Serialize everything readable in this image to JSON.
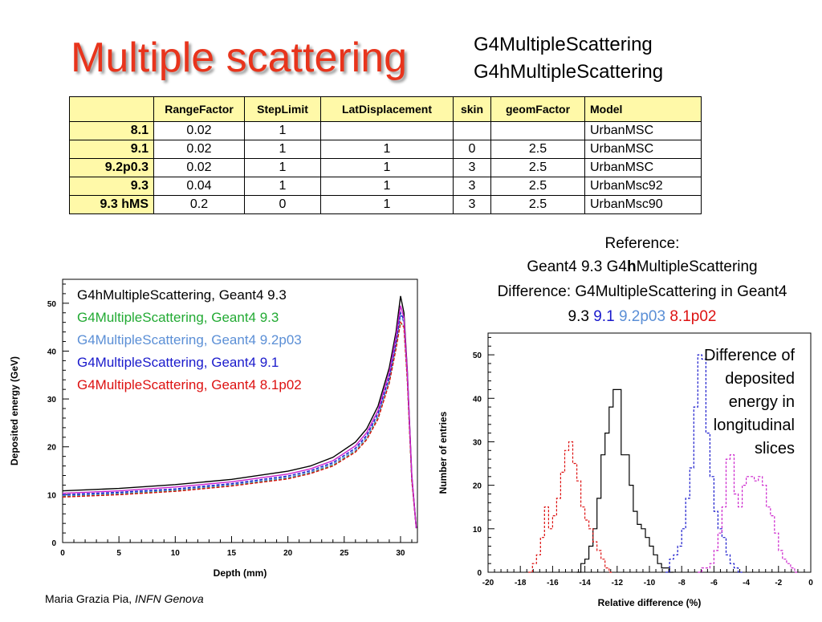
{
  "title": "Multiple scattering",
  "classes": [
    "G4MultipleScattering",
    "G4hMultipleScattering"
  ],
  "table": {
    "headers": [
      "",
      "RangeFactor",
      "StepLimit",
      "LatDisplacement",
      "skin",
      "geomFactor",
      "Model"
    ],
    "rows": [
      [
        "8.1",
        "0.02",
        "1",
        "",
        "",
        "",
        "UrbanMSC"
      ],
      [
        "9.1",
        "0.02",
        "1",
        "1",
        "0",
        "2.5",
        "UrbanMSC"
      ],
      [
        "9.2p0.3",
        "0.02",
        "1",
        "1",
        "3",
        "2.5",
        "UrbanMSC"
      ],
      [
        "9.3",
        "0.04",
        "1",
        "1",
        "3",
        "2.5",
        "UrbanMsc92"
      ],
      [
        "9.3 hMS",
        "0.2",
        "0",
        "1",
        "3",
        "2.5",
        "UrbanMsc90"
      ]
    ]
  },
  "reference": {
    "line1": "Reference:",
    "line2_pre": "Geant4 9.3 G4",
    "line2_bold": "h",
    "line2_post": "MultipleScattering",
    "line3": "Difference: G4MultipleScattering in Geant4",
    "line4_black": "9.3",
    "line4_blue": "9.1",
    "line4_lightblue": "9.2p03",
    "line4_red": "8.1p02"
  },
  "note": [
    "Difference of",
    "deposited",
    "energy in",
    "longitudinal",
    "slices"
  ],
  "author": {
    "name": "Maria Grazia Pia, ",
    "affiliation": "INFN Genova"
  },
  "colors": {
    "title": "#e8341c",
    "black": "#000000",
    "green": "#22aa33",
    "lightblue": "#5b8fd6",
    "blue": "#1a1acc",
    "red": "#dd1111",
    "magenta": "#cc22cc",
    "header_bg": "#fff9a8"
  },
  "chart_data": [
    {
      "type": "line",
      "xlabel": "Depth (mm)",
      "ylabel": "Deposited energy (GeV)",
      "xlim": [
        0,
        31.5
      ],
      "ylim": [
        0,
        55
      ],
      "xticks": [
        0,
        5,
        10,
        15,
        20,
        25,
        30
      ],
      "yticks": [
        0,
        10,
        20,
        30,
        40,
        50
      ],
      "legend": "top-left",
      "series": [
        {
          "name": "G4hMultipleScattering, Geant4 9.3",
          "color": "#000000",
          "dash": "solid",
          "points": [
            [
              0,
              10.8
            ],
            [
              5,
              11.3
            ],
            [
              10,
              12.1
            ],
            [
              15,
              13.2
            ],
            [
              20,
              14.9
            ],
            [
              22,
              16.0
            ],
            [
              24,
              17.8
            ],
            [
              26,
              21.0
            ],
            [
              27,
              23.8
            ],
            [
              28,
              28.5
            ],
            [
              29,
              36.5
            ],
            [
              29.6,
              44
            ],
            [
              30,
              51.5
            ],
            [
              30.3,
              48
            ],
            [
              30.6,
              36
            ],
            [
              31,
              14
            ],
            [
              31.4,
              3
            ]
          ]
        },
        {
          "name": "G4MultipleScattering, Geant4 9.3",
          "color": "#22aa33",
          "dash": "dashed",
          "points": [
            [
              0,
              9.6
            ],
            [
              5,
              10.1
            ],
            [
              10,
              10.8
            ],
            [
              15,
              11.9
            ],
            [
              20,
              13.4
            ],
            [
              22,
              14.5
            ],
            [
              24,
              16.1
            ],
            [
              26,
              19.0
            ],
            [
              27,
              21.6
            ],
            [
              28,
              26.0
            ],
            [
              29,
              33.5
            ],
            [
              29.6,
              40.5
            ],
            [
              30,
              46
            ],
            [
              30.3,
              45
            ],
            [
              30.6,
              34
            ],
            [
              31,
              13
            ],
            [
              31.4,
              3
            ]
          ]
        },
        {
          "name": "G4MultipleScattering, Geant4 9.2p03",
          "color": "#5b8fd6",
          "dash": "dashed",
          "points": [
            [
              0,
              9.8
            ],
            [
              5,
              10.3
            ],
            [
              10,
              11.0
            ],
            [
              15,
              12.1
            ],
            [
              20,
              13.6
            ],
            [
              22,
              14.7
            ],
            [
              24,
              16.4
            ],
            [
              26,
              19.3
            ],
            [
              27,
              22.0
            ],
            [
              28,
              26.5
            ],
            [
              29,
              34
            ],
            [
              29.6,
              41.5
            ],
            [
              30,
              47.5
            ],
            [
              30.3,
              46
            ],
            [
              30.6,
              35
            ],
            [
              31,
              13.5
            ],
            [
              31.4,
              3
            ]
          ]
        },
        {
          "name": "G4MultipleScattering, Geant4 9.1",
          "color": "#1a1acc",
          "dash": "dashed",
          "points": [
            [
              0,
              10.0
            ],
            [
              5,
              10.5
            ],
            [
              10,
              11.2
            ],
            [
              15,
              12.3
            ],
            [
              20,
              13.9
            ],
            [
              22,
              15.0
            ],
            [
              24,
              16.7
            ],
            [
              26,
              19.7
            ],
            [
              27,
              22.4
            ],
            [
              28,
              27.0
            ],
            [
              29,
              34.6
            ],
            [
              29.6,
              42
            ],
            [
              30,
              48
            ],
            [
              30.3,
              46.5
            ],
            [
              30.6,
              35
            ],
            [
              31,
              13.5
            ],
            [
              31.4,
              3
            ]
          ]
        },
        {
          "name": "G4MultipleScattering, Geant4 8.1p02",
          "color": "#dd1111",
          "dash": "dashed",
          "points": [
            [
              0,
              9.5
            ],
            [
              5,
              10.0
            ],
            [
              10,
              10.7
            ],
            [
              15,
              11.8
            ],
            [
              20,
              13.3
            ],
            [
              22,
              14.4
            ],
            [
              24,
              16.0
            ],
            [
              26,
              18.9
            ],
            [
              27,
              21.5
            ],
            [
              28,
              25.8
            ],
            [
              29,
              33.3
            ],
            [
              29.6,
              40.5
            ],
            [
              30,
              46
            ],
            [
              30.3,
              45
            ],
            [
              30.6,
              34
            ],
            [
              31,
              13
            ],
            [
              31.4,
              3
            ]
          ]
        },
        {
          "name": "",
          "color": "#cc22cc",
          "dash": "solid",
          "points": [
            [
              0,
              10.3
            ],
            [
              5,
              10.8
            ],
            [
              10,
              11.6
            ],
            [
              15,
              12.7
            ],
            [
              20,
              14.3
            ],
            [
              22,
              15.4
            ],
            [
              24,
              17.1
            ],
            [
              26,
              20.2
            ],
            [
              27,
              23.0
            ],
            [
              28,
              27.6
            ],
            [
              29,
              35.5
            ],
            [
              29.6,
              43
            ],
            [
              30,
              49.5
            ],
            [
              30.3,
              47
            ],
            [
              30.6,
              35.5
            ],
            [
              31,
              14
            ],
            [
              31.4,
              3
            ]
          ]
        }
      ]
    },
    {
      "type": "histogram",
      "xlabel": "Relative difference (%)",
      "ylabel": "Number of entries",
      "xlim": [
        -20,
        0
      ],
      "ylim": [
        0,
        55
      ],
      "xticks": [
        -20,
        -18,
        -16,
        -14,
        -12,
        -10,
        -8,
        -6,
        -4,
        -2,
        0
      ],
      "yticks": [
        0,
        10,
        20,
        30,
        40,
        50
      ],
      "bin_width": 0.25,
      "series": [
        {
          "name": "9.3",
          "color": "#000000",
          "dash": "solid",
          "start": -14.5,
          "values": [
            0,
            2,
            3,
            6,
            10,
            17,
            27,
            32,
            38,
            42,
            42,
            27,
            27,
            20,
            14,
            11,
            10,
            8,
            6,
            4,
            2,
            1,
            1,
            0
          ]
        },
        {
          "name": "9.1",
          "color": "#1a1acc",
          "dash": "dashed",
          "start": -9.0,
          "values": [
            0,
            3,
            4,
            6,
            10,
            17,
            24,
            38,
            50,
            49,
            32,
            22,
            14,
            10,
            8,
            4,
            2,
            1,
            0
          ]
        },
        {
          "name": "8.1p02",
          "color": "#dd1111",
          "dash": "dashed",
          "start": -17.5,
          "values": [
            0,
            2,
            4,
            8,
            15,
            10,
            13,
            17,
            23,
            28,
            30,
            25,
            21,
            15,
            12,
            10,
            7,
            5,
            3,
            1,
            0
          ]
        },
        {
          "name": "",
          "color": "#cc22cc",
          "dash": "dashed",
          "start": -7.0,
          "values": [
            0,
            1,
            1,
            2,
            5,
            9,
            15,
            26,
            27,
            18,
            15,
            20,
            22,
            22,
            21,
            22,
            20,
            15,
            13,
            9,
            5,
            3,
            2,
            1,
            0
          ]
        }
      ]
    }
  ]
}
